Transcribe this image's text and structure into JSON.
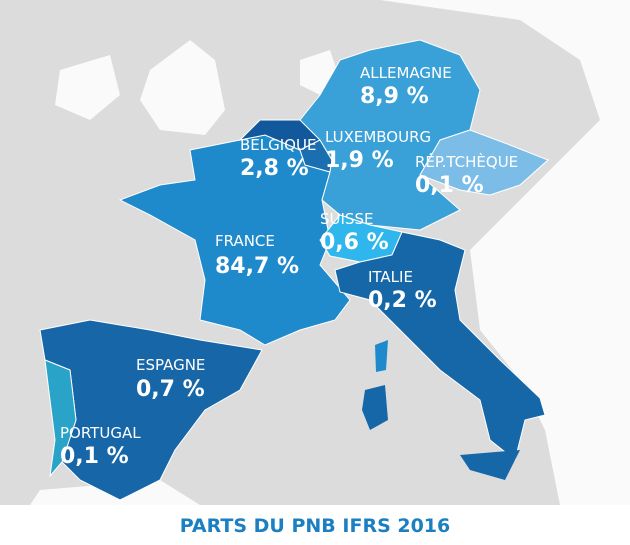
{
  "map": {
    "title": "PARTS DU PNB IFRS 2016",
    "regions": [
      {
        "name": "ALLEMAGNE",
        "share": "8,9 %"
      },
      {
        "name": "BELGIQUE",
        "share": "2,8 %"
      },
      {
        "name": "LUXEMBOURG",
        "share": "1,9 %"
      },
      {
        "name": "RÉP.TCHÈQUE",
        "share": "0,1 %"
      },
      {
        "name": "SUISSE",
        "share": "0,6 %"
      },
      {
        "name": "FRANCE",
        "share": "84,7 %"
      },
      {
        "name": "ITALIE",
        "share": "0,2 %"
      },
      {
        "name": "ESPAGNE",
        "share": "0,7 %"
      },
      {
        "name": "PORTUGAL",
        "share": "0,1 %"
      }
    ]
  }
}
